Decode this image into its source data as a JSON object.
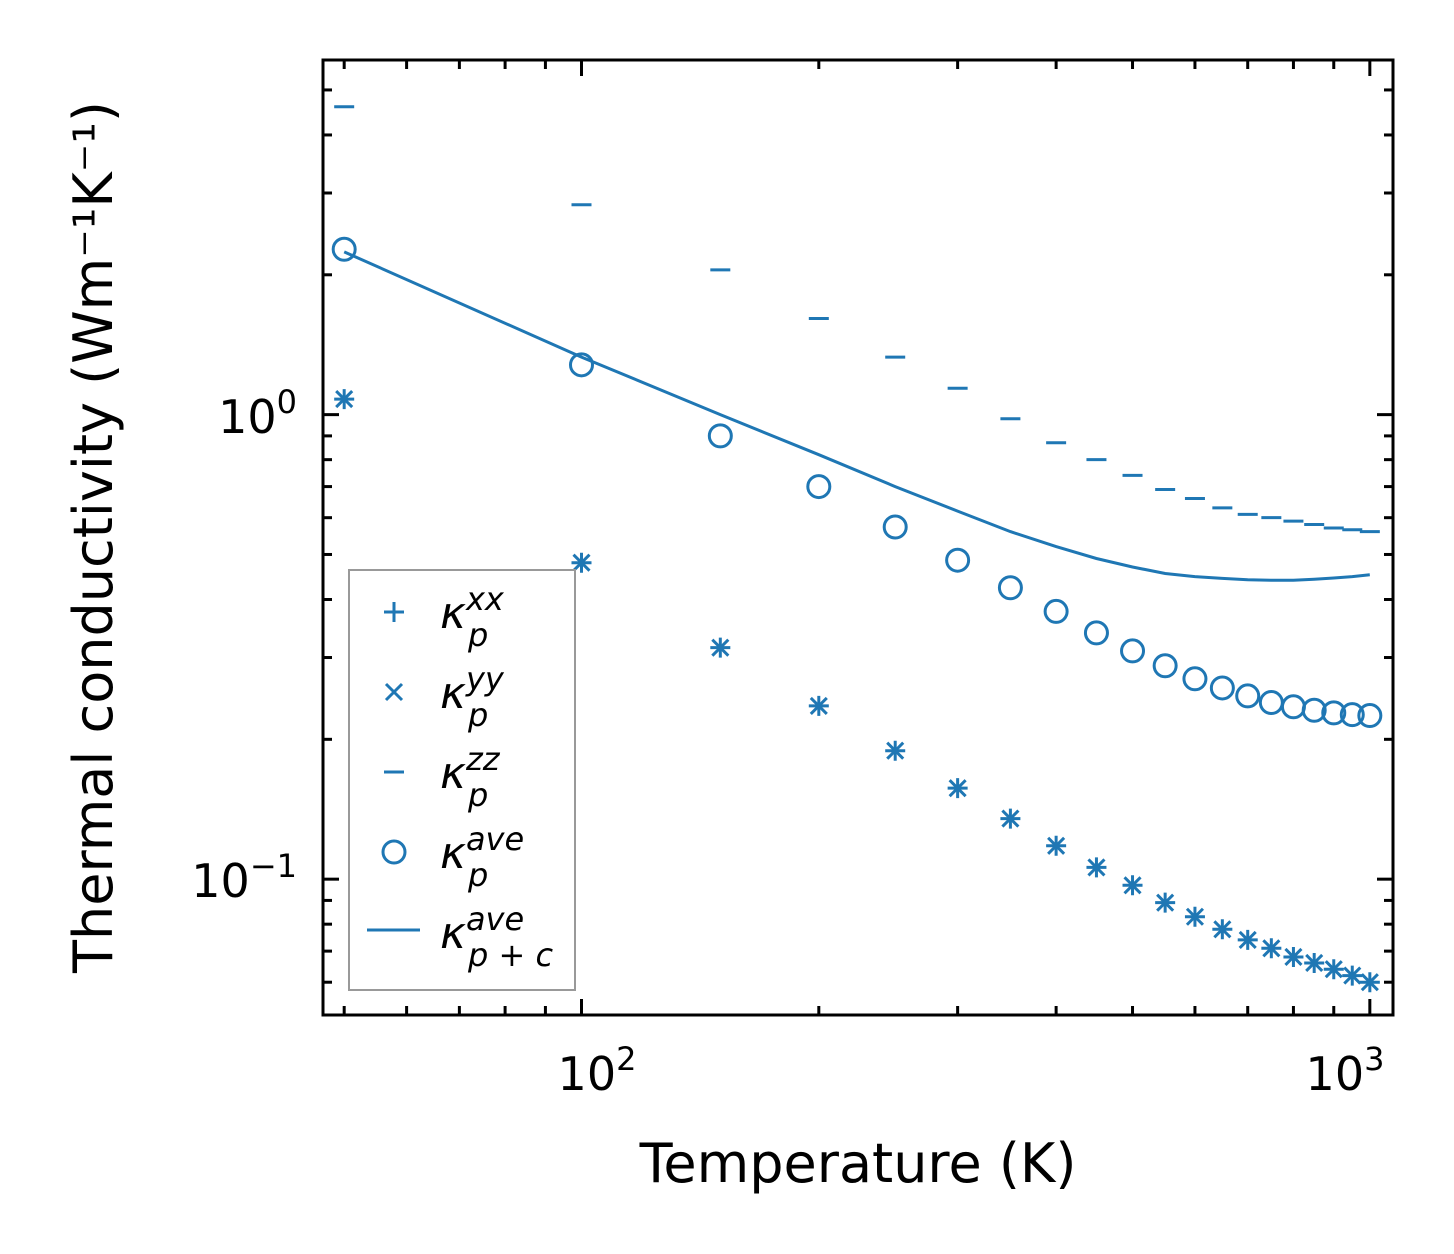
{
  "chart_data": {
    "type": "scatter",
    "title": "",
    "xlabel": "Temperature (K)",
    "ylabel": "Thermal conductivity (Wm⁻¹K⁻¹)",
    "xscale": "log",
    "yscale": "log",
    "xlim": [
      47,
      1070
    ],
    "ylim": [
      0.051,
      5.8
    ],
    "color": "#1f77b4",
    "x_ticks": [
      {
        "value": 100,
        "base": "10",
        "exp": "2"
      },
      {
        "value": 1000,
        "base": "10",
        "exp": "3"
      }
    ],
    "y_ticks": [
      {
        "value": 0.1,
        "base": "10",
        "exp": "−1"
      },
      {
        "value": 1,
        "base": "10",
        "exp": "0"
      }
    ],
    "x": [
      50,
      100,
      150,
      200,
      250,
      300,
      350,
      400,
      450,
      500,
      550,
      600,
      650,
      700,
      750,
      800,
      850,
      900,
      950,
      1000
    ],
    "legend_position": "lower-left",
    "series": [
      {
        "name": "κ_p^xx",
        "label_main": "κ",
        "label_sup": "xx",
        "label_sub": "p",
        "marker": "plus",
        "values": [
          1.08,
          0.48,
          0.315,
          0.236,
          0.189,
          0.157,
          0.135,
          0.118,
          0.106,
          0.097,
          0.089,
          0.083,
          0.078,
          0.074,
          0.071,
          0.068,
          0.066,
          0.064,
          0.062,
          0.06
        ]
      },
      {
        "name": "κ_p^yy",
        "label_main": "κ",
        "label_sup": "yy",
        "label_sub": "p",
        "marker": "x",
        "values": [
          1.08,
          0.48,
          0.315,
          0.236,
          0.189,
          0.157,
          0.135,
          0.118,
          0.106,
          0.097,
          0.089,
          0.083,
          0.078,
          0.074,
          0.071,
          0.068,
          0.066,
          0.064,
          0.062,
          0.06
        ]
      },
      {
        "name": "κ_p^zz",
        "label_main": "κ",
        "label_sup": "zz",
        "label_sub": "p",
        "marker": "hline",
        "values": [
          4.6,
          2.83,
          2.05,
          1.61,
          1.33,
          1.14,
          0.98,
          0.87,
          0.8,
          0.74,
          0.69,
          0.66,
          0.63,
          0.61,
          0.6,
          0.59,
          0.58,
          0.57,
          0.565,
          0.56
        ]
      },
      {
        "name": "κ_p^ave",
        "label_main": "κ",
        "label_sup": "ave",
        "label_sub": "p",
        "marker": "circle",
        "values": [
          2.27,
          1.28,
          0.9,
          0.7,
          0.573,
          0.486,
          0.424,
          0.377,
          0.339,
          0.31,
          0.288,
          0.27,
          0.258,
          0.248,
          0.24,
          0.235,
          0.231,
          0.228,
          0.226,
          0.225
        ]
      },
      {
        "name": "κ_p+c^ave",
        "label_main": "κ",
        "label_sup": "ave",
        "label_sub": "p + c",
        "marker": "line",
        "values": [
          2.24,
          1.33,
          1.0,
          0.82,
          0.7,
          0.62,
          0.56,
          0.52,
          0.49,
          0.47,
          0.455,
          0.448,
          0.444,
          0.441,
          0.44,
          0.44,
          0.442,
          0.445,
          0.448,
          0.452
        ]
      }
    ]
  }
}
